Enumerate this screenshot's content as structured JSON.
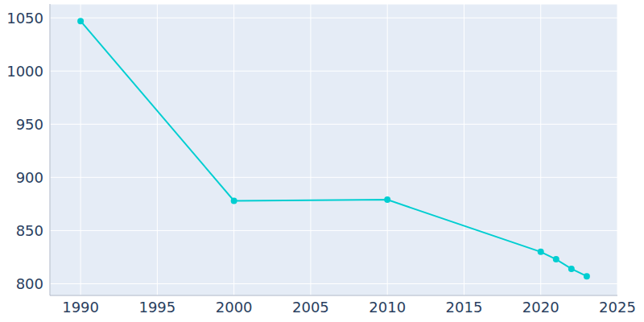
{
  "chart_data": {
    "type": "line",
    "x": [
      1990,
      2000,
      2010,
      2020,
      2021,
      2022,
      2023
    ],
    "values": [
      1047,
      878,
      879,
      830,
      823,
      814,
      807
    ],
    "color": "#00ced1",
    "xlim": [
      1988,
      2025
    ],
    "xticks": [
      1990,
      1995,
      2000,
      2005,
      2010,
      2015,
      2020,
      2025
    ],
    "ylim": [
      789,
      1063
    ],
    "yticks": [
      800,
      850,
      900,
      950,
      1000,
      1050
    ],
    "grid": true,
    "marker": "circle"
  }
}
